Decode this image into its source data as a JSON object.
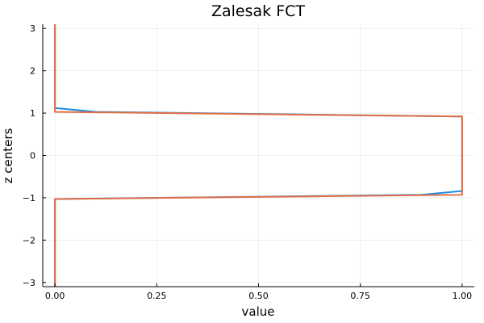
{
  "chart_data": {
    "type": "line",
    "title": "Zalesak FCT",
    "xlabel": "value",
    "ylabel": "z centers",
    "xlim": [
      -0.03,
      1.03
    ],
    "ylim": [
      -3.1,
      3.1
    ],
    "xticks": [
      0.0,
      0.25,
      0.5,
      0.75,
      1.0
    ],
    "xtick_labels": [
      "0.00",
      "0.25",
      "0.50",
      "0.75",
      "1.00"
    ],
    "yticks": [
      -3,
      -2,
      -1,
      0,
      1,
      2,
      3
    ],
    "ytick_labels": [
      "−3",
      "−2",
      "−1",
      "0",
      "1",
      "2",
      "3"
    ],
    "grid": true,
    "legend": "none",
    "series": [
      {
        "color": "#1f8ee0",
        "x": [
          0,
          0,
          0,
          0.9,
          1.0,
          1.0,
          0.1,
          0,
          0,
          0
        ],
        "y": [
          -3.1,
          -3,
          -1.03,
          -0.93,
          -0.84,
          0.92,
          1.03,
          1.12,
          3,
          3.1
        ]
      },
      {
        "color": "#e26f46",
        "x": [
          0,
          0,
          0,
          0,
          1.0,
          1.0,
          0,
          0,
          0
        ],
        "y": [
          -3.1,
          -3,
          -1.05,
          -1.03,
          -0.93,
          0.92,
          1.03,
          3,
          3.1
        ]
      }
    ]
  }
}
